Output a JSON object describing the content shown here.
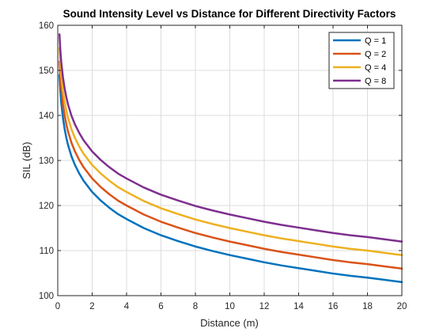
{
  "chart_data": {
    "type": "line",
    "title": "Sound Intensity Level vs Distance for Different Directivity Factors",
    "xlabel": "Distance (m)",
    "ylabel": "SIL (dB)",
    "xlim": [
      0,
      20
    ],
    "ylim": [
      100,
      160
    ],
    "xticks": [
      0,
      2,
      4,
      6,
      8,
      10,
      12,
      14,
      16,
      18,
      20
    ],
    "yticks": [
      100,
      110,
      120,
      130,
      140,
      150,
      160
    ],
    "xtick_labels": [
      "0",
      "2",
      "4",
      "6",
      "8",
      "10",
      "12",
      "14",
      "16",
      "18",
      "20"
    ],
    "ytick_labels": [
      "100",
      "110",
      "120",
      "130",
      "140",
      "150",
      "160"
    ],
    "grid": true,
    "legend_position": "top-right",
    "x": [
      0.1,
      0.15,
      0.2,
      0.3,
      0.4,
      0.5,
      0.6,
      0.8,
      1,
      1.25,
      1.5,
      2,
      2.5,
      3,
      3.5,
      4,
      5,
      6,
      7,
      8,
      9,
      10,
      11,
      12,
      13,
      14,
      15,
      16,
      17,
      18,
      19,
      20
    ],
    "series": [
      {
        "name": "Q = 1",
        "color": "#0072BD",
        "values": [
          149,
          145.5,
          143,
          139.5,
          137,
          135,
          133.4,
          130.9,
          129,
          127.1,
          125.5,
          123,
          121.1,
          119.5,
          118.1,
          117,
          115,
          113.4,
          112.1,
          110.9,
          109.9,
          109,
          108.2,
          107.4,
          106.7,
          106.1,
          105.5,
          104.9,
          104.4,
          104,
          103.5,
          103
        ]
      },
      {
        "name": "Q = 2",
        "color": "#D95319",
        "values": [
          152,
          148.5,
          146,
          142.5,
          140,
          138,
          136.4,
          133.9,
          132,
          130.1,
          128.5,
          126,
          124.1,
          122.5,
          121.1,
          120,
          118,
          116.4,
          115.1,
          113.9,
          112.9,
          112,
          111.2,
          110.4,
          109.7,
          109.1,
          108.5,
          107.9,
          107.4,
          107,
          106.5,
          106
        ]
      },
      {
        "name": "Q = 4",
        "color": "#EDB120",
        "values": [
          155,
          151.5,
          149,
          145.5,
          143,
          141,
          139.4,
          136.9,
          135,
          133.1,
          131.5,
          129,
          127.1,
          125.5,
          124.1,
          123,
          121,
          119.4,
          118.1,
          116.9,
          115.9,
          115,
          114.2,
          113.4,
          112.7,
          112.1,
          111.5,
          110.9,
          110.4,
          110,
          109.5,
          109
        ]
      },
      {
        "name": "Q = 8",
        "color": "#7E2F8E",
        "values": [
          158,
          154.5,
          152,
          148.5,
          146,
          144,
          142.4,
          139.9,
          138,
          136.1,
          134.5,
          132,
          130.1,
          128.5,
          127.1,
          126,
          124,
          122.4,
          121.1,
          119.9,
          118.9,
          118,
          117.2,
          116.4,
          115.7,
          115.1,
          114.5,
          113.9,
          113.4,
          113,
          112.5,
          112
        ]
      }
    ]
  }
}
